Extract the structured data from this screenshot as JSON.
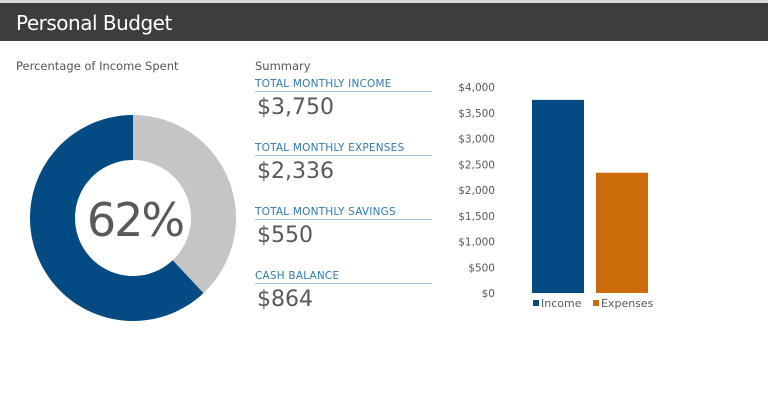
{
  "header": {
    "title": "Personal Budget"
  },
  "donut": {
    "heading": "Percentage of Income Spent",
    "percent_label": "62%",
    "percent": 62,
    "colors": {
      "spent": "#044a83",
      "remaining": "#c5c5c5"
    }
  },
  "summary": {
    "heading": "Summary",
    "items": [
      {
        "label": "TOTAL MONTHLY INCOME",
        "value": "$3,750"
      },
      {
        "label": "TOTAL MONTHLY EXPENSES",
        "value": "$2,336"
      },
      {
        "label": "TOTAL MONTHLY SAVINGS",
        "value": "$550"
      },
      {
        "label": "CASH BALANCE",
        "value": "$864"
      }
    ]
  },
  "chart_data": {
    "type": "bar",
    "categories": [
      "Income",
      "Expenses"
    ],
    "values": [
      3750,
      2336
    ],
    "colors": [
      "#044a83",
      "#cc6b0a"
    ],
    "ylim": [
      0,
      4000
    ],
    "yticks": [
      "$0",
      "$500",
      "$1,000",
      "$1,500",
      "$2,000",
      "$2,500",
      "$3,000",
      "$3,500",
      "$4,000"
    ],
    "legend": "bottom",
    "grid": false
  }
}
